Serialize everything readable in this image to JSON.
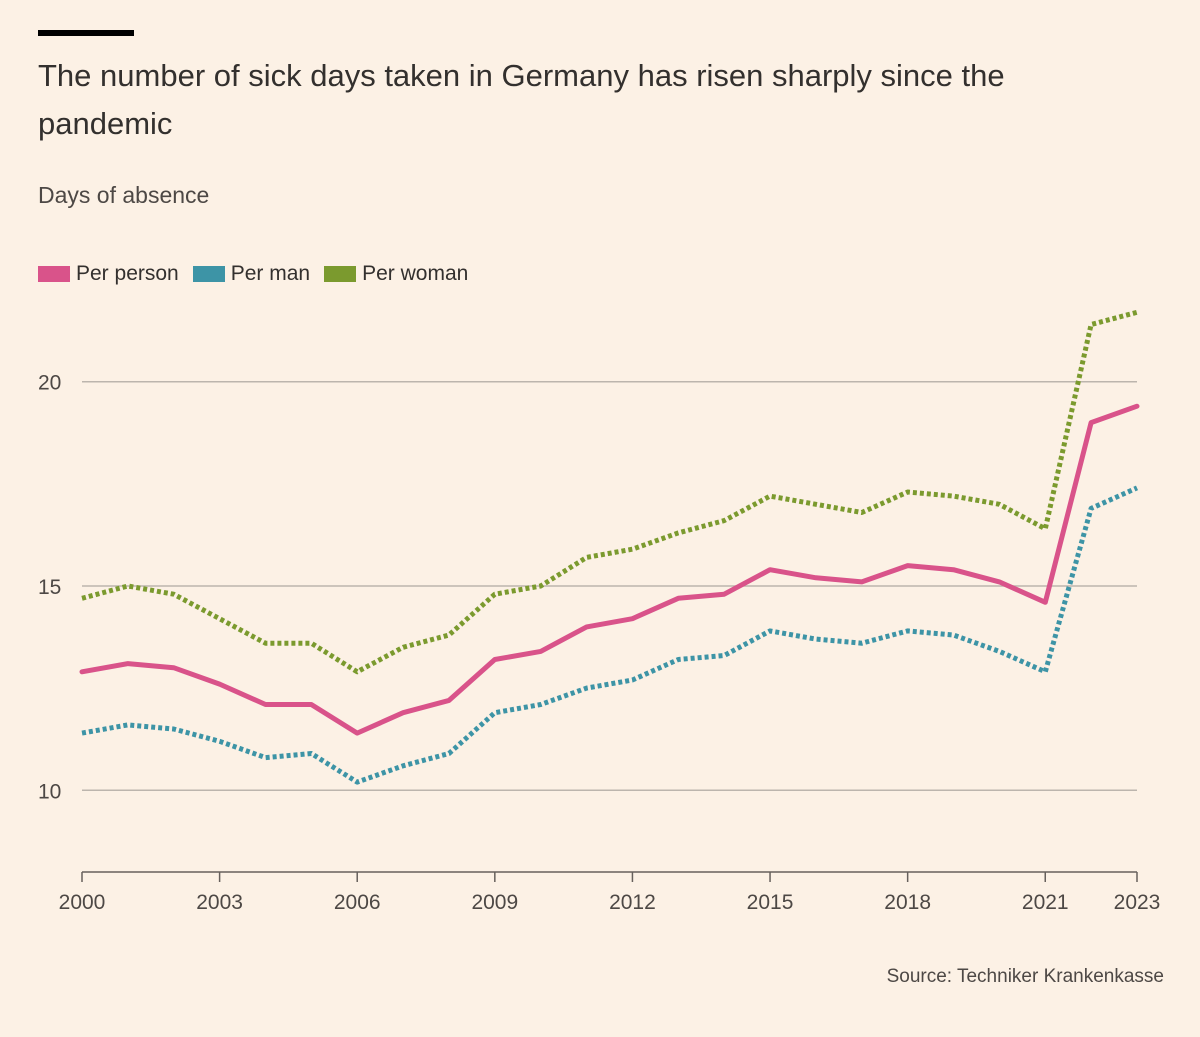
{
  "title": "The number of sick days taken in Germany has risen sharply since the pandemic",
  "subtitle": "Days of absence",
  "source": "Source: Techniker Krankenkasse",
  "colors": {
    "per_person": "#d9538a",
    "per_man": "#3d94a6",
    "per_woman": "#7b9a2e",
    "grid": "#bcb5ad",
    "axis": "#66605c"
  },
  "legend": [
    {
      "key": "per_person",
      "label": "Per person"
    },
    {
      "key": "per_man",
      "label": "Per man"
    },
    {
      "key": "per_woman",
      "label": "Per woman"
    }
  ],
  "chart_data": {
    "type": "line",
    "title": "The number of sick days taken in Germany has risen sharply since the pandemic",
    "ylabel": "Days of absence",
    "xlabel": "",
    "x": [
      2000,
      2001,
      2002,
      2003,
      2004,
      2005,
      2006,
      2007,
      2008,
      2009,
      2010,
      2011,
      2012,
      2013,
      2014,
      2015,
      2016,
      2017,
      2018,
      2019,
      2020,
      2021,
      2022,
      2023
    ],
    "xlim": [
      2000,
      2023
    ],
    "ylim": [
      8,
      22
    ],
    "x_ticks": [
      "2000",
      "2003",
      "2006",
      "2009",
      "2012",
      "2015",
      "2018",
      "2021",
      "2023"
    ],
    "y_ticks": [
      "10",
      "15",
      "20"
    ],
    "grid": true,
    "legend_position": "top-left",
    "series": [
      {
        "key": "per_person",
        "name": "Per person",
        "style": "solid",
        "values": [
          12.9,
          13.1,
          13.0,
          12.6,
          12.1,
          12.1,
          11.4,
          11.9,
          12.2,
          13.2,
          13.4,
          14.0,
          14.2,
          14.7,
          14.8,
          15.4,
          15.2,
          15.1,
          15.5,
          15.4,
          15.1,
          14.6,
          19.0,
          19.4
        ]
      },
      {
        "key": "per_man",
        "name": "Per man",
        "style": "dotted",
        "values": [
          11.4,
          11.6,
          11.5,
          11.2,
          10.8,
          10.9,
          10.2,
          10.6,
          10.9,
          11.9,
          12.1,
          12.5,
          12.7,
          13.2,
          13.3,
          13.9,
          13.7,
          13.6,
          13.9,
          13.8,
          13.4,
          12.9,
          16.9,
          17.4
        ]
      },
      {
        "key": "per_woman",
        "name": "Per woman",
        "style": "dotted",
        "values": [
          14.7,
          15.0,
          14.8,
          14.2,
          13.6,
          13.6,
          12.9,
          13.5,
          13.8,
          14.8,
          15.0,
          15.7,
          15.9,
          16.3,
          16.6,
          17.2,
          17.0,
          16.8,
          17.3,
          17.2,
          17.0,
          16.4,
          21.4,
          21.7
        ]
      }
    ]
  }
}
